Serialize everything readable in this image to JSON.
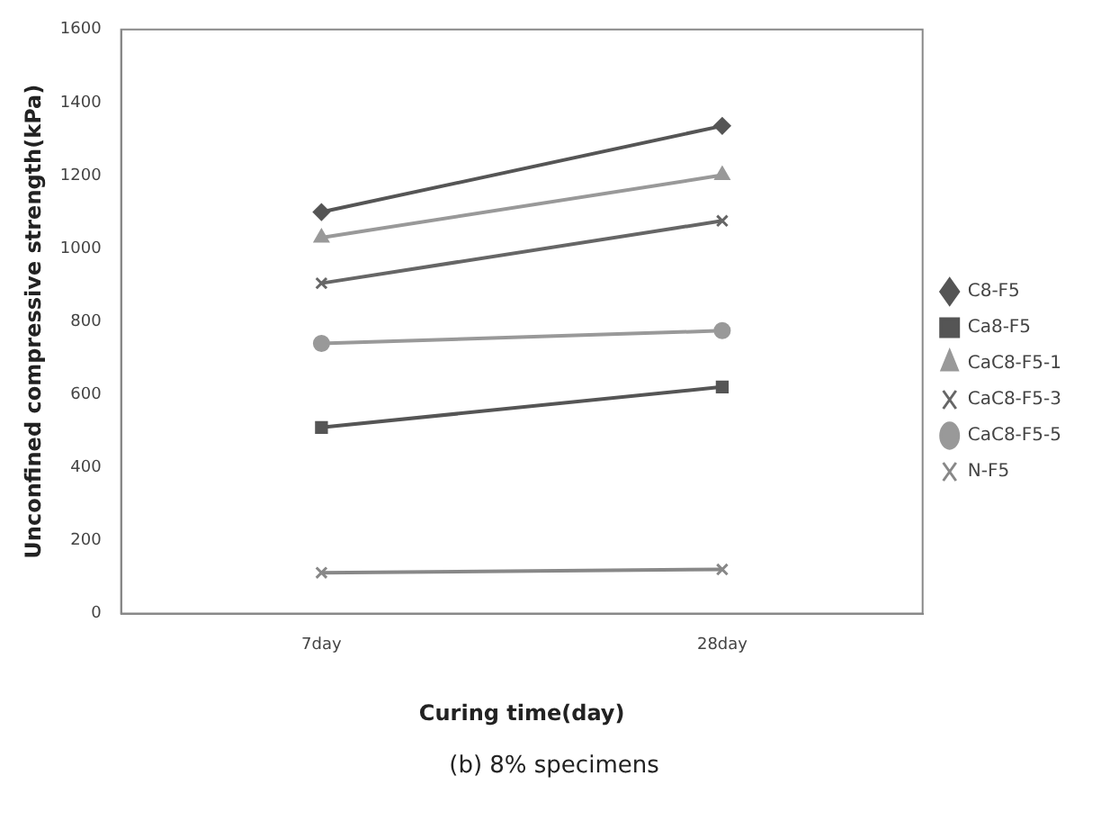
{
  "chart_data": {
    "type": "line",
    "xlabel": "Curing time(day)",
    "ylabel": "Unconfined compressive strength(kPa)",
    "categories": [
      "7day",
      "28day"
    ],
    "series": [
      {
        "name": "C8-F5",
        "color": "#555555",
        "marker": "diamond",
        "values": [
          1100,
          1336
        ]
      },
      {
        "name": "Ca8-F5",
        "color": "#555555",
        "marker": "square",
        "values": [
          510,
          621
        ]
      },
      {
        "name": "CaC8-F5-1",
        "color": "#999999",
        "marker": "triangle",
        "values": [
          1030,
          1201
        ]
      },
      {
        "name": "CaC8-F5-3",
        "color": "#666666",
        "marker": "cross",
        "values": [
          905,
          1076
        ]
      },
      {
        "name": "CaC8-F5-5",
        "color": "#999999",
        "marker": "circle",
        "values": [
          740,
          775
        ]
      },
      {
        "name": "N-F5",
        "color": "#888888",
        "marker": "cross",
        "values": [
          112,
          121
        ]
      }
    ],
    "ylim": [
      0,
      1600
    ],
    "yticks": [
      0,
      200,
      400,
      600,
      800,
      1000,
      1200,
      1400,
      1600
    ],
    "grid": false,
    "legend": "right",
    "line_style": "solid",
    "annotations": [
      "(b) 8% specimens"
    ]
  }
}
